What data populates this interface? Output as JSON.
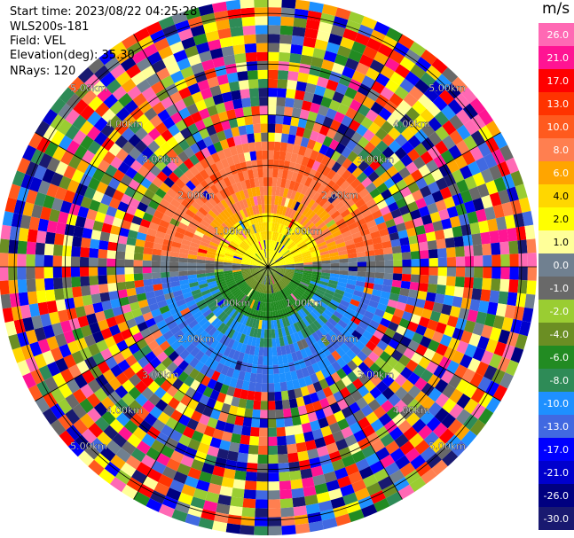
{
  "header": {
    "start_time": "Start time: 2023/08/22 04:25:28",
    "instrument": "WLS200s-181",
    "field": "Field: VEL",
    "elevation": "Elevation(deg): 35.30",
    "nrays": "NRays: 120"
  },
  "colorbar": {
    "unit": "m/s",
    "ticks": [
      "26.0",
      "21.0",
      "17.0",
      "13.0",
      "10.0",
      "8.0",
      "6.0",
      "4.0",
      "2.0",
      "1.0",
      "0.0",
      "-1.0",
      "-2.0",
      "-4.0",
      "-6.0",
      "-8.0",
      "-10.0",
      "-13.0",
      "-17.0",
      "-21.0",
      "-26.0",
      "-30.0"
    ],
    "colors": [
      "#ff69b4",
      "#ff1493",
      "#ff0000",
      "#ff3300",
      "#ff5a1e",
      "#ff7f50",
      "#ffa500",
      "#ffd700",
      "#ffff00",
      "#ffff99",
      "#708090",
      "#696969",
      "#9acd32",
      "#6b8e23",
      "#228b22",
      "#2e8b57",
      "#1e90ff",
      "#4169e1",
      "#0000ff",
      "#0000cd",
      "#000080",
      "#191970"
    ]
  },
  "chart_data": {
    "type": "ppi",
    "field": "VEL",
    "units": "m/s",
    "nrays": 120,
    "elevation_deg": 35.3,
    "range_rings_km": [
      1.0,
      2.0,
      3.0,
      4.0,
      5.0
    ],
    "range_ring_label": "km",
    "ring_labels": [
      {
        "text": "1.00km",
        "angle_deg": 315
      },
      {
        "text": "1.00km",
        "angle_deg": 45
      },
      {
        "text": "1.00km",
        "angle_deg": 225
      },
      {
        "text": "1.00km",
        "angle_deg": 135
      },
      {
        "text": "2.00km",
        "angle_deg": 315
      },
      {
        "text": "2.00km",
        "angle_deg": 45
      },
      {
        "text": "2.00km",
        "angle_deg": 225
      },
      {
        "text": "2.00km",
        "angle_deg": 135
      },
      {
        "text": "3.00km",
        "angle_deg": 315
      },
      {
        "text": "3.00km",
        "angle_deg": 45
      },
      {
        "text": "3.00km",
        "angle_deg": 225
      },
      {
        "text": "3.00km",
        "angle_deg": 135
      },
      {
        "text": "4.00km",
        "angle_deg": 315
      },
      {
        "text": "4.00km",
        "angle_deg": 45
      },
      {
        "text": "4.00km",
        "angle_deg": 225
      },
      {
        "text": "4.00km",
        "angle_deg": 135
      },
      {
        "text": "5.00km",
        "angle_deg": 315
      },
      {
        "text": "5.00km",
        "angle_deg": 45
      },
      {
        "text": "5.00km",
        "angle_deg": 225
      },
      {
        "text": "5.00km",
        "angle_deg": 135
      }
    ],
    "max_range_km": 5.3,
    "coherent_range_km": 2.3,
    "pattern": "organized velocity field near center (positive north, negative south), noise beyond",
    "colorbar_range": [
      -30.0,
      26.0
    ]
  }
}
